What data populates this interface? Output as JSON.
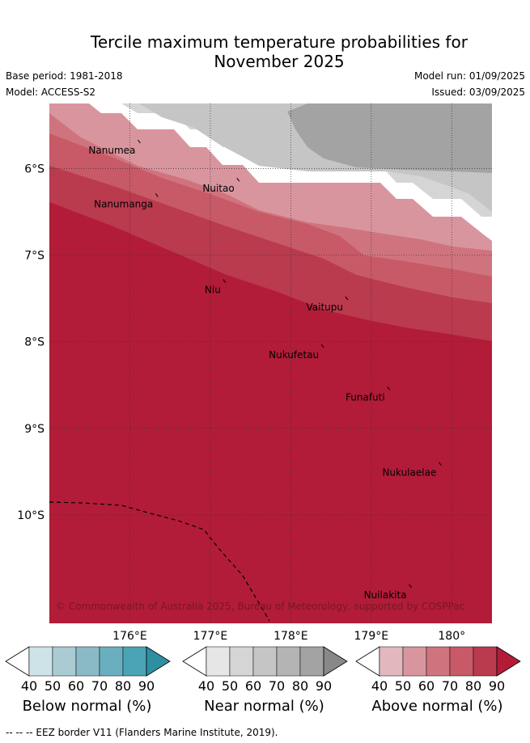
{
  "title_line1": "Tercile maximum temperature probabilities for",
  "title_line2": "November 2025",
  "base_period": "Base period: 1981-2018",
  "model": "Model: ACCESS-S2",
  "model_run": "Model run: 01/09/2025",
  "issued": "Issued: 03/09/2025",
  "map": {
    "lon_range": [
      175.0,
      180.5
    ],
    "lat_range": [
      -5.25,
      -11.25
    ],
    "lon_ticks": [
      {
        "value": 176,
        "label": "176°E"
      },
      {
        "value": 177,
        "label": "177°E"
      },
      {
        "value": 178,
        "label": "178°E"
      },
      {
        "value": 179,
        "label": "179°E"
      },
      {
        "value": 180,
        "label": "180°"
      }
    ],
    "lat_ticks": [
      {
        "value": -6,
        "label": "6°S"
      },
      {
        "value": -7,
        "label": "7°S"
      },
      {
        "value": -8,
        "label": "8°S"
      },
      {
        "value": -9,
        "label": "9°S"
      },
      {
        "value": -10,
        "label": "10°S"
      }
    ],
    "islands": [
      {
        "name": "Nanumea",
        "lon": 176.1,
        "lat": -5.67
      },
      {
        "name": "Nanumanga",
        "lon": 176.32,
        "lat": -6.29
      },
      {
        "name": "Nuitao",
        "lon": 177.33,
        "lat": -6.11
      },
      {
        "name": "Niu",
        "lon": 177.16,
        "lat": -7.28
      },
      {
        "name": "Vaitupu",
        "lon": 178.68,
        "lat": -7.48
      },
      {
        "name": "Nukufetau",
        "lon": 178.38,
        "lat": -8.03
      },
      {
        "name": "Funafuti",
        "lon": 179.2,
        "lat": -8.52
      },
      {
        "name": "Nukulaelae",
        "lon": 179.84,
        "lat": -9.39
      },
      {
        "name": "Nuilakita",
        "lon": 179.47,
        "lat": -10.8
      }
    ],
    "copyright": "© Commonwealth of Australia 2025, Bureau of Meteorology, supported by COSPPac"
  },
  "colorbars": [
    {
      "label": "Below normal (%)",
      "ticks": [
        "40",
        "50",
        "60",
        "70",
        "80",
        "90"
      ],
      "colors": [
        "#ffffff",
        "#cde3e8",
        "#abcbd2",
        "#8bbac7",
        "#6aafbf",
        "#4ba3b6",
        "#2e8fa3"
      ]
    },
    {
      "label": "Near normal (%)",
      "ticks": [
        "40",
        "50",
        "60",
        "70",
        "80",
        "90"
      ],
      "colors": [
        "#ffffff",
        "#e6e6e6",
        "#d5d5d5",
        "#c5c5c5",
        "#b4b4b4",
        "#a3a3a3",
        "#888888"
      ]
    },
    {
      "label": "Above normal (%)",
      "ticks": [
        "40",
        "50",
        "60",
        "70",
        "80",
        "90"
      ],
      "colors": [
        "#ffffff",
        "#e2b8be",
        "#d9959e",
        "#cf747e",
        "#c75a66",
        "#ba3a4e",
        "#b21c38"
      ]
    }
  ],
  "footnote": "--  --  -- EEZ border V11 (Flanders Marine Institute, 2019)."
}
